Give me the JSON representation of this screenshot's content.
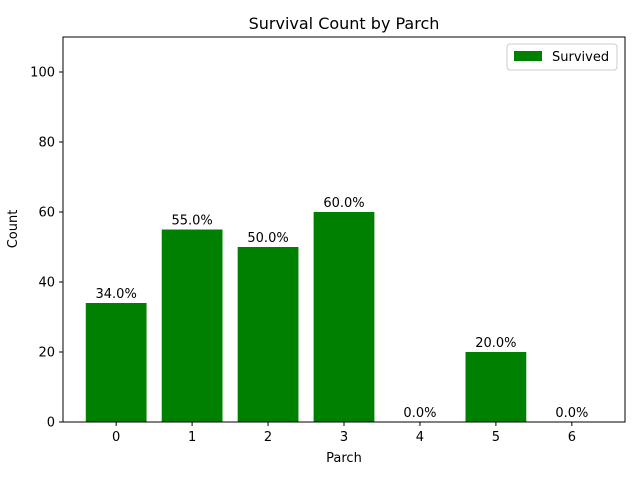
{
  "chart_data": {
    "type": "bar",
    "title": "Survival Count by Parch",
    "xlabel": "Parch",
    "ylabel": "Count",
    "categories": [
      "0",
      "1",
      "2",
      "3",
      "4",
      "5",
      "6"
    ],
    "series": [
      {
        "name": "Survived",
        "color": "#008000",
        "values": [
          34,
          55,
          50,
          60,
          0,
          20,
          0
        ],
        "labels": [
          "34.0%",
          "55.0%",
          "50.0%",
          "60.0%",
          "0.0%",
          "20.0%",
          "0.0%"
        ]
      }
    ],
    "ylim": [
      0,
      110
    ],
    "yticks": [
      0,
      20,
      40,
      60,
      80,
      100
    ],
    "grid": false,
    "legend": "top-right"
  }
}
